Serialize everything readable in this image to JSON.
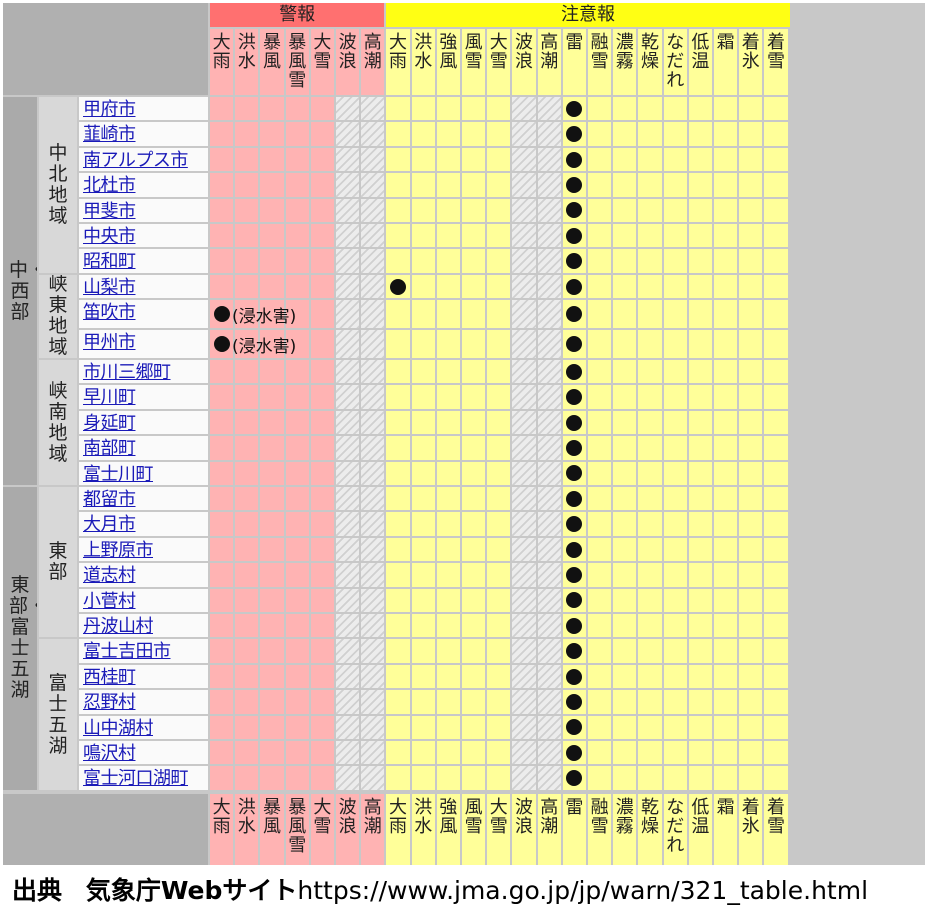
{
  "groups": {
    "warning": "警報",
    "advisory": "注意報"
  },
  "warning_columns": [
    "大雨",
    "洪水",
    "暴風",
    "暴風雪",
    "大雪",
    "波浪",
    "高潮"
  ],
  "advisory_columns": [
    "大雨",
    "洪水",
    "強風",
    "風雪",
    "大雪",
    "波浪",
    "高潮",
    "雷",
    "融雪",
    "濃霧",
    "乾燥",
    "なだれ",
    "低温",
    "霜",
    "着氷",
    "着雪"
  ],
  "regions": [
    {
      "name": "中・西部",
      "subregions": [
        {
          "name": "中北地域",
          "municipalities": [
            "甲府市",
            "韮崎市",
            "南アルプス市",
            "北杜市",
            "甲斐市",
            "中央市",
            "昭和町"
          ]
        },
        {
          "name": "峡東地域",
          "municipalities": [
            "山梨市",
            "笛吹市",
            "甲州市"
          ]
        },
        {
          "name": "峡南地域",
          "municipalities": [
            "市川三郷町",
            "早川町",
            "身延町",
            "南部町",
            "富士川町"
          ]
        }
      ]
    },
    {
      "name": "東部・富士五湖",
      "subregions": [
        {
          "name": "東部",
          "municipalities": [
            "都留市",
            "大月市",
            "上野原市",
            "道志村",
            "小菅村",
            "丹波山村"
          ]
        },
        {
          "name": "富士五湖",
          "municipalities": [
            "富士吉田市",
            "西桂町",
            "忍野村",
            "山中湖村",
            "鳴沢村",
            "富士河口湖町"
          ]
        }
      ]
    }
  ],
  "marks": {
    "heavy_rain_warning": [
      {
        "municipality": "笛吹市",
        "note": "(浸水害)"
      },
      {
        "municipality": "甲州市",
        "note": "(浸水害)"
      }
    ],
    "heavy_rain_advisory": [
      "山梨市"
    ],
    "thunder_advisory": "all"
  },
  "colors": {
    "warning_header": "#ff7070",
    "warning_cell": "#ffb3b3",
    "advisory_header": "#ffff14",
    "advisory_cell": "#ffff99",
    "grid": "#c8c8c8"
  },
  "credit": {
    "label": "出典",
    "source": "気象庁Webサイト",
    "url": "https://www.jma.go.jp/jp/warn/321_table.html"
  }
}
